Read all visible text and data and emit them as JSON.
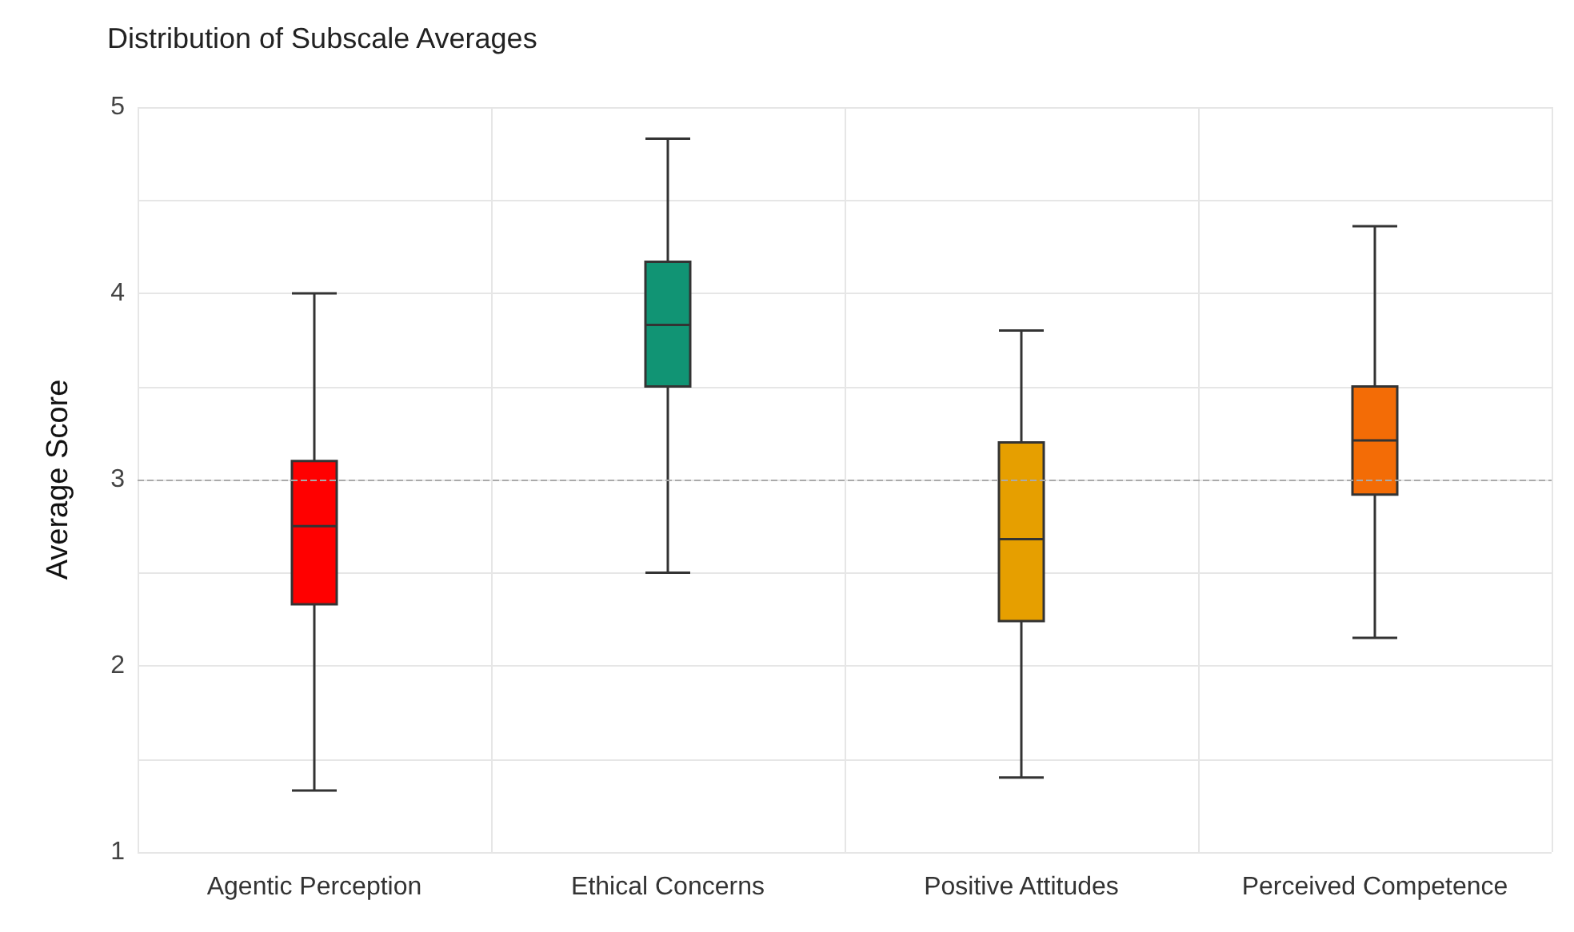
{
  "chart_data": {
    "type": "box",
    "title": "Distribution of Subscale Averages",
    "ylabel": "Average Score",
    "categories": [
      "Agentic Perception",
      "Ethical Concerns",
      "Positive Attitudes",
      "Perceived Competence"
    ],
    "colors": [
      "#ff0000",
      "#119474",
      "#e69f00",
      "#f36c06"
    ],
    "boxes": [
      {
        "low": 1.33,
        "q1": 2.33,
        "median": 2.75,
        "q3": 3.1,
        "high": 4.0
      },
      {
        "low": 2.5,
        "q1": 3.5,
        "median": 3.83,
        "q3": 4.17,
        "high": 4.83
      },
      {
        "low": 1.4,
        "q1": 2.24,
        "median": 2.68,
        "q3": 3.2,
        "high": 3.8
      },
      {
        "low": 2.15,
        "q1": 2.92,
        "median": 3.21,
        "q3": 3.5,
        "high": 4.36
      }
    ],
    "ylim": [
      1,
      5
    ],
    "yticks": [
      1,
      {
        "value": 1.5,
        "label": null
      },
      2,
      {
        "value": 2.5,
        "label": null
      },
      3,
      {
        "value": 3.5,
        "label": null
      },
      4,
      {
        "value": 4.5,
        "label": null
      },
      5
    ],
    "ref_lines": [
      {
        "axis": "y",
        "value": 3,
        "color": "#aaaaaa",
        "line_style": "dashed"
      }
    ],
    "grid": true
  }
}
